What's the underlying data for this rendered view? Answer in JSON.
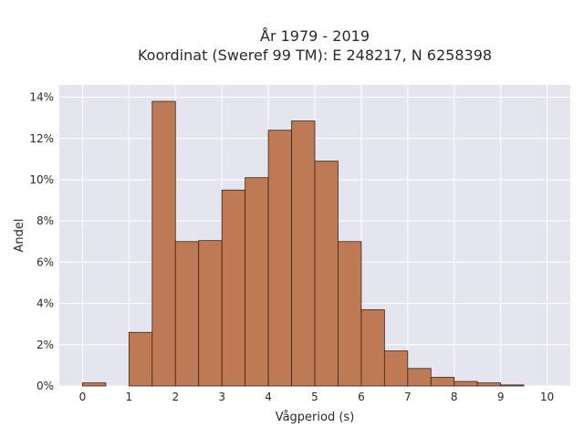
{
  "chart_data": {
    "type": "bar",
    "title_line1": "År 1979 - 2019",
    "title_line2": "Koordinat (Sweref 99 TM): E 248217, N 6258398",
    "xlabel": "Vågperiod (s)",
    "ylabel": "Andel",
    "bin_width": 0.5,
    "bin_starts": [
      0,
      0.5,
      1,
      1.5,
      2,
      2.5,
      3,
      3.5,
      4,
      4.5,
      5,
      5.5,
      6,
      6.5,
      7,
      7.5,
      8,
      8.5,
      9,
      9.5
    ],
    "values": [
      0.15,
      0,
      2.6,
      13.8,
      7.0,
      7.05,
      9.5,
      10.1,
      12.4,
      12.85,
      10.9,
      7.0,
      3.7,
      1.7,
      0.85,
      0.42,
      0.22,
      0.15,
      0.05,
      0
    ],
    "xlim": [
      -0.5,
      10.5
    ],
    "ylim": [
      0,
      14.6
    ],
    "x_ticks": [
      0,
      1,
      2,
      3,
      4,
      5,
      6,
      7,
      8,
      9,
      10
    ],
    "x_tick_labels": [
      "0",
      "1",
      "2",
      "3",
      "4",
      "5",
      "6",
      "7",
      "8",
      "9",
      "10"
    ],
    "y_ticks": [
      0,
      2,
      4,
      6,
      8,
      10,
      12,
      14
    ],
    "y_tick_labels": [
      "0%",
      "2%",
      "4%",
      "6%",
      "8%",
      "10%",
      "12%",
      "14%"
    ],
    "grid": true,
    "colors": {
      "bar": "#bd7a55",
      "bar_edge": "#3a2418",
      "plot_bg": "#e5e5ef",
      "grid": "#ffffff",
      "text": "#2a2a2a"
    }
  }
}
